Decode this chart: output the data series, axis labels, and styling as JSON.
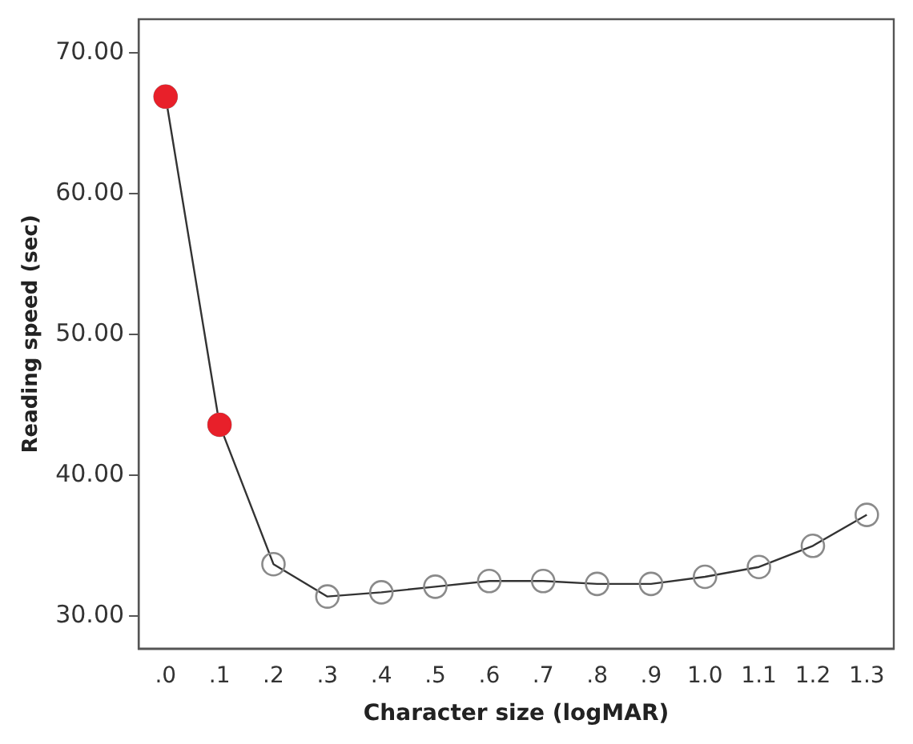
{
  "chart_data": {
    "type": "line",
    "xlabel": "Character size (logMAR)",
    "ylabel": "Reading speed (sec)",
    "categories": [
      ".0",
      ".1",
      ".2",
      ".3",
      ".4",
      ".5",
      ".6",
      ".7",
      ".8",
      ".9",
      "1.0",
      "1.1",
      "1.2",
      "1.3"
    ],
    "series": [
      {
        "color": "#333333",
        "values": [
          66.9,
          43.6,
          33.7,
          31.4,
          31.7,
          32.1,
          32.5,
          32.5,
          32.3,
          32.3,
          32.8,
          33.5,
          35.0,
          37.2
        ]
      },
      {
        "type": "scatter",
        "color": "#e8202a",
        "x": [
          ".0",
          ".1"
        ],
        "values": [
          66.9,
          43.6
        ]
      }
    ],
    "ylim": [
      27.7,
      72.4
    ],
    "yticks": [
      {
        "value": 30,
        "label": "30.00"
      },
      {
        "value": 40,
        "label": "40.00"
      },
      {
        "value": 50,
        "label": "50.00"
      },
      {
        "value": 60,
        "label": "60.00"
      },
      {
        "value": 70,
        "label": "70.00"
      }
    ],
    "grid": false,
    "legend": false,
    "marker": "circle",
    "line_style": "solid"
  }
}
